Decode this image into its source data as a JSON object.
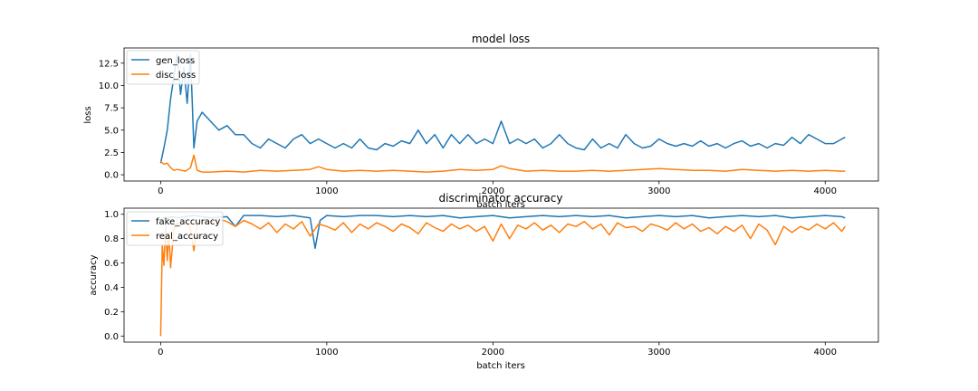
{
  "chart_data": [
    {
      "type": "line",
      "title": "model loss",
      "xlabel": "batch iters",
      "ylabel": "loss",
      "xlim": [
        -220,
        4320
      ],
      "ylim": [
        -0.7,
        14.2
      ],
      "xticks": [
        0,
        1000,
        2000,
        3000,
        4000
      ],
      "yticks": [
        0.0,
        2.5,
        5.0,
        7.5,
        10.0,
        12.5
      ],
      "xtick_labels": [
        "0",
        "1000",
        "2000",
        "3000",
        "4000"
      ],
      "ytick_labels": [
        "0.0",
        "2.5",
        "5.0",
        "7.5",
        "10.0",
        "12.5"
      ],
      "legend_position": "upper-left",
      "grid": false,
      "series": [
        {
          "name": "gen_loss",
          "color": "#1f77b4",
          "x": [
            0,
            20,
            40,
            60,
            80,
            100,
            120,
            140,
            160,
            180,
            200,
            220,
            250,
            300,
            350,
            400,
            450,
            500,
            550,
            600,
            650,
            700,
            750,
            800,
            850,
            900,
            950,
            1000,
            1050,
            1100,
            1150,
            1200,
            1250,
            1300,
            1350,
            1400,
            1450,
            1500,
            1550,
            1600,
            1650,
            1700,
            1750,
            1800,
            1850,
            1900,
            1950,
            2000,
            2050,
            2100,
            2150,
            2200,
            2250,
            2300,
            2350,
            2400,
            2450,
            2500,
            2550,
            2600,
            2650,
            2700,
            2750,
            2800,
            2850,
            2900,
            2950,
            3000,
            3050,
            3100,
            3150,
            3200,
            3250,
            3300,
            3350,
            3400,
            3450,
            3500,
            3550,
            3600,
            3650,
            3700,
            3750,
            3800,
            3850,
            3900,
            3950,
            4000,
            4050,
            4100,
            4120
          ],
          "values": [
            1.3,
            3.0,
            5.0,
            8.5,
            11.0,
            13.5,
            9.0,
            12.0,
            8.0,
            13.5,
            3.0,
            6.0,
            7.0,
            6.0,
            5.0,
            5.5,
            4.5,
            4.5,
            3.5,
            3.0,
            4.0,
            3.5,
            3.0,
            4.0,
            4.5,
            3.5,
            4.0,
            3.5,
            3.0,
            3.5,
            3.0,
            4.0,
            3.0,
            2.8,
            3.5,
            3.2,
            3.8,
            3.5,
            5.0,
            3.5,
            4.5,
            3.0,
            4.5,
            3.5,
            4.5,
            3.5,
            4.0,
            3.5,
            6.0,
            3.5,
            4.0,
            3.5,
            4.0,
            3.0,
            3.5,
            4.5,
            3.5,
            3.0,
            2.8,
            4.0,
            3.0,
            3.5,
            3.0,
            4.5,
            3.5,
            3.0,
            3.2,
            4.0,
            3.5,
            3.2,
            3.5,
            3.2,
            3.8,
            3.2,
            3.5,
            3.0,
            3.5,
            3.8,
            3.2,
            3.5,
            3.0,
            3.5,
            3.3,
            4.2,
            3.5,
            4.5,
            4.0,
            3.5,
            3.5,
            4.0,
            4.2
          ]
        },
        {
          "name": "disc_loss",
          "color": "#ff7f0e",
          "x": [
            0,
            20,
            40,
            60,
            80,
            100,
            150,
            180,
            200,
            220,
            250,
            300,
            400,
            500,
            600,
            700,
            800,
            900,
            950,
            1000,
            1100,
            1200,
            1300,
            1400,
            1500,
            1600,
            1700,
            1800,
            1900,
            2000,
            2050,
            2100,
            2200,
            2300,
            2400,
            2500,
            2600,
            2700,
            2800,
            2900,
            3000,
            3100,
            3200,
            3300,
            3400,
            3500,
            3600,
            3700,
            3800,
            3900,
            4000,
            4100,
            4120
          ],
          "values": [
            1.5,
            1.2,
            1.3,
            0.8,
            0.5,
            0.6,
            0.4,
            0.8,
            2.2,
            0.5,
            0.3,
            0.3,
            0.4,
            0.3,
            0.5,
            0.4,
            0.5,
            0.6,
            0.9,
            0.6,
            0.4,
            0.5,
            0.4,
            0.5,
            0.4,
            0.3,
            0.4,
            0.6,
            0.5,
            0.6,
            1.0,
            0.7,
            0.4,
            0.5,
            0.4,
            0.4,
            0.5,
            0.4,
            0.5,
            0.6,
            0.7,
            0.6,
            0.5,
            0.5,
            0.4,
            0.6,
            0.5,
            0.4,
            0.5,
            0.4,
            0.5,
            0.4,
            0.4
          ]
        }
      ]
    },
    {
      "type": "line",
      "title": "discriminator accuracy",
      "xlabel": "batch iters",
      "ylabel": "accuracy",
      "xlim": [
        -220,
        4320
      ],
      "ylim": [
        -0.05,
        1.05
      ],
      "xticks": [
        0,
        1000,
        2000,
        3000,
        4000
      ],
      "yticks": [
        0.0,
        0.2,
        0.4,
        0.6,
        0.8,
        1.0
      ],
      "xtick_labels": [
        "0",
        "1000",
        "2000",
        "3000",
        "4000"
      ],
      "ytick_labels": [
        "0.0",
        "0.2",
        "0.4",
        "0.6",
        "0.8",
        "1.0"
      ],
      "legend_position": "upper-left",
      "grid": false,
      "series": [
        {
          "name": "fake_accuracy",
          "color": "#1f77b4",
          "x": [
            0,
            20,
            40,
            60,
            100,
            150,
            200,
            250,
            300,
            400,
            450,
            500,
            600,
            700,
            800,
            900,
            930,
            960,
            1000,
            1100,
            1200,
            1300,
            1400,
            1500,
            1600,
            1700,
            1800,
            1900,
            2000,
            2100,
            2200,
            2300,
            2400,
            2500,
            2600,
            2700,
            2800,
            2900,
            3000,
            3100,
            3200,
            3300,
            3400,
            3500,
            3600,
            3700,
            3800,
            3900,
            4000,
            4100,
            4120
          ],
          "values": [
            0.95,
            0.97,
            0.96,
            0.98,
            0.97,
            0.98,
            0.99,
            0.98,
            0.97,
            0.98,
            0.9,
            0.99,
            0.99,
            0.98,
            0.99,
            0.97,
            0.72,
            0.95,
            0.99,
            0.98,
            0.99,
            0.99,
            0.98,
            0.99,
            0.98,
            0.99,
            0.97,
            0.98,
            0.99,
            0.97,
            0.98,
            0.99,
            0.98,
            0.99,
            0.98,
            0.99,
            0.97,
            0.98,
            0.99,
            0.98,
            0.99,
            0.97,
            0.98,
            0.99,
            0.98,
            0.99,
            0.97,
            0.98,
            0.99,
            0.98,
            0.97
          ]
        },
        {
          "name": "real_accuracy",
          "color": "#ff7f0e",
          "x": [
            0,
            5,
            10,
            20,
            30,
            40,
            50,
            60,
            80,
            100,
            120,
            150,
            180,
            200,
            220,
            250,
            300,
            350,
            400,
            450,
            500,
            550,
            600,
            650,
            700,
            750,
            800,
            850,
            900,
            950,
            1000,
            1050,
            1100,
            1150,
            1200,
            1250,
            1300,
            1350,
            1400,
            1450,
            1500,
            1550,
            1600,
            1650,
            1700,
            1750,
            1800,
            1850,
            1900,
            1950,
            2000,
            2050,
            2100,
            2150,
            2200,
            2250,
            2300,
            2350,
            2400,
            2450,
            2500,
            2550,
            2600,
            2650,
            2700,
            2750,
            2800,
            2850,
            2900,
            2950,
            3000,
            3050,
            3100,
            3150,
            3200,
            3250,
            3300,
            3350,
            3400,
            3450,
            3500,
            3550,
            3600,
            3650,
            3700,
            3750,
            3800,
            3850,
            3900,
            3950,
            4000,
            4050,
            4100,
            4120
          ],
          "values": [
            0.0,
            0.36,
            0.75,
            0.58,
            0.9,
            0.62,
            0.85,
            0.56,
            0.88,
            0.93,
            0.9,
            0.95,
            0.88,
            0.7,
            0.92,
            0.95,
            0.93,
            0.96,
            0.94,
            0.9,
            0.95,
            0.92,
            0.88,
            0.93,
            0.85,
            0.92,
            0.88,
            0.94,
            0.82,
            0.92,
            0.9,
            0.87,
            0.93,
            0.85,
            0.92,
            0.88,
            0.93,
            0.9,
            0.86,
            0.92,
            0.89,
            0.84,
            0.93,
            0.89,
            0.86,
            0.92,
            0.88,
            0.91,
            0.86,
            0.9,
            0.78,
            0.92,
            0.8,
            0.91,
            0.88,
            0.93,
            0.87,
            0.91,
            0.85,
            0.92,
            0.9,
            0.94,
            0.88,
            0.92,
            0.83,
            0.93,
            0.89,
            0.9,
            0.86,
            0.92,
            0.9,
            0.87,
            0.93,
            0.88,
            0.92,
            0.86,
            0.89,
            0.84,
            0.9,
            0.86,
            0.91,
            0.8,
            0.92,
            0.87,
            0.75,
            0.9,
            0.85,
            0.9,
            0.87,
            0.92,
            0.88,
            0.93,
            0.86,
            0.9
          ]
        }
      ]
    }
  ]
}
